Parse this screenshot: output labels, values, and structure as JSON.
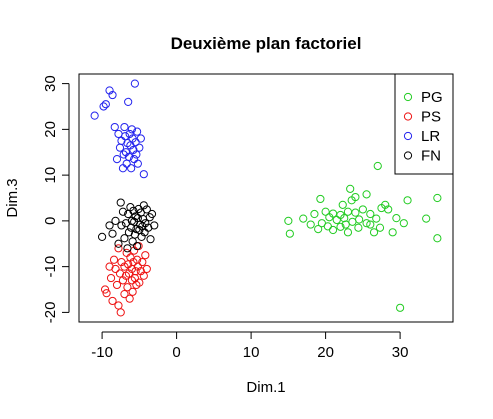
{
  "chart_data": {
    "type": "scatter",
    "title": "Deuxième plan factoriel",
    "xlabel": "Dim.1",
    "ylabel": "Dim.3",
    "xlim": [
      -13.1,
      37.1
    ],
    "ylim": [
      -22.1,
      32.1
    ],
    "x_ticks": [
      -10,
      0,
      10,
      20,
      30
    ],
    "y_ticks": [
      -20,
      -10,
      0,
      10,
      20,
      30
    ],
    "grid": false,
    "legend_position": "top-right",
    "series": [
      {
        "name": "PG",
        "color": "#22cc22",
        "points": [
          [
            15,
            0
          ],
          [
            15.2,
            -2.8
          ],
          [
            17,
            0.5
          ],
          [
            18,
            -0.8
          ],
          [
            18.5,
            1.5
          ],
          [
            19,
            -1.8
          ],
          [
            19.3,
            4.8
          ],
          [
            19.5,
            -0.5
          ],
          [
            20,
            2
          ],
          [
            20.3,
            -1.2
          ],
          [
            20.5,
            0.8
          ],
          [
            21,
            1.6
          ],
          [
            21,
            -2
          ],
          [
            21.5,
            0.2
          ],
          [
            22,
            1.3
          ],
          [
            22,
            -1.3
          ],
          [
            22.3,
            3.5
          ],
          [
            22.5,
            0.6
          ],
          [
            22.7,
            -0.8
          ],
          [
            23,
            2
          ],
          [
            23,
            -2.5
          ],
          [
            23.3,
            7
          ],
          [
            23.5,
            4.5
          ],
          [
            23.6,
            -0.2
          ],
          [
            24,
            1.8
          ],
          [
            24,
            5.2
          ],
          [
            24.4,
            -1.5
          ],
          [
            24.5,
            0.3
          ],
          [
            25,
            2.5
          ],
          [
            25.5,
            -0.5
          ],
          [
            25.5,
            5.8
          ],
          [
            26,
            1.5
          ],
          [
            26,
            -0.8
          ],
          [
            26.5,
            -2.5
          ],
          [
            26.8,
            0.5
          ],
          [
            27,
            12
          ],
          [
            27.3,
            -1.5
          ],
          [
            27.5,
            2.8
          ],
          [
            28,
            3.5
          ],
          [
            28.4,
            2.5
          ],
          [
            29,
            -2.5
          ],
          [
            29.5,
            0.6
          ],
          [
            30,
            -19
          ],
          [
            30.5,
            -0.5
          ],
          [
            31,
            4.5
          ],
          [
            33.5,
            0.5
          ],
          [
            35,
            -3.8
          ],
          [
            35,
            5
          ]
        ]
      },
      {
        "name": "PS",
        "color": "#ee1111",
        "points": [
          [
            -9.6,
            -15
          ],
          [
            -9.4,
            -15.8
          ],
          [
            -9,
            -10
          ],
          [
            -8.8,
            -12.5
          ],
          [
            -8.6,
            -17.5
          ],
          [
            -8.4,
            -8.5
          ],
          [
            -8.2,
            -10.5
          ],
          [
            -8,
            -14
          ],
          [
            -7.8,
            -6
          ],
          [
            -7.8,
            -18.5
          ],
          [
            -7.6,
            -11.5
          ],
          [
            -7.5,
            -20
          ],
          [
            -7.4,
            -9
          ],
          [
            -7.2,
            -13
          ],
          [
            -7,
            -16
          ],
          [
            -7,
            -10
          ],
          [
            -6.8,
            -12
          ],
          [
            -6.7,
            -7
          ],
          [
            -6.6,
            -14.5
          ],
          [
            -6.5,
            -9.5
          ],
          [
            -6.4,
            -11.5
          ],
          [
            -6.3,
            -17
          ],
          [
            -6.2,
            -8
          ],
          [
            -6,
            -13
          ],
          [
            -6,
            -10.5
          ],
          [
            -5.9,
            -15.5
          ],
          [
            -5.8,
            -9
          ],
          [
            -5.7,
            -6.5
          ],
          [
            -5.6,
            -12.5
          ],
          [
            -5.5,
            -11
          ],
          [
            -5.4,
            -14
          ],
          [
            -5.3,
            -8.5
          ],
          [
            -5.2,
            -10
          ],
          [
            -5.1,
            -5.5
          ],
          [
            -5,
            -13.5
          ],
          [
            -4.8,
            -11
          ],
          [
            -4.6,
            -9
          ],
          [
            -4.4,
            -12
          ],
          [
            -4.2,
            -7.5
          ],
          [
            -4,
            -10.5
          ]
        ]
      },
      {
        "name": "LR",
        "color": "#2222ee",
        "points": [
          [
            -11,
            23
          ],
          [
            -9.8,
            25
          ],
          [
            -9.5,
            25.5
          ],
          [
            -9,
            28.5
          ],
          [
            -8.6,
            27.5
          ],
          [
            -8.3,
            20.5
          ],
          [
            -8,
            13.5
          ],
          [
            -7.8,
            19
          ],
          [
            -7.6,
            16
          ],
          [
            -7.4,
            17.5
          ],
          [
            -7.2,
            11.5
          ],
          [
            -7.1,
            14.5
          ],
          [
            -7,
            20.5
          ],
          [
            -6.9,
            18.5
          ],
          [
            -6.8,
            15
          ],
          [
            -6.7,
            12.5
          ],
          [
            -6.6,
            17
          ],
          [
            -6.5,
            26
          ],
          [
            -6.4,
            14
          ],
          [
            -6.3,
            19
          ],
          [
            -6.2,
            16.5
          ],
          [
            -6.1,
            11.5
          ],
          [
            -6,
            20
          ],
          [
            -5.9,
            18
          ],
          [
            -5.8,
            15.5
          ],
          [
            -5.7,
            13.5
          ],
          [
            -5.6,
            30
          ],
          [
            -5.5,
            17.2
          ],
          [
            -5.4,
            14.5
          ],
          [
            -5.3,
            19.5
          ],
          [
            -5.2,
            12.5
          ],
          [
            -5,
            16
          ],
          [
            -4.8,
            18
          ],
          [
            -4.4,
            10.2
          ]
        ]
      },
      {
        "name": "FN",
        "color": "#000000",
        "points": [
          [
            -10,
            -3.5
          ],
          [
            -9,
            -1
          ],
          [
            -8.6,
            -2.8
          ],
          [
            -8.2,
            0
          ],
          [
            -7.8,
            -5
          ],
          [
            -7.5,
            4
          ],
          [
            -7.4,
            -1
          ],
          [
            -7.2,
            2
          ],
          [
            -7,
            -3.8
          ],
          [
            -6.8,
            -0.5
          ],
          [
            -6.6,
            -6
          ],
          [
            -6.5,
            1.5
          ],
          [
            -6.4,
            -2.5
          ],
          [
            -6.2,
            3
          ],
          [
            -6.1,
            -1.5
          ],
          [
            -6,
            0
          ],
          [
            -5.9,
            -4.5
          ],
          [
            -5.8,
            2.2
          ],
          [
            -5.7,
            -0.2
          ],
          [
            -5.6,
            -3
          ],
          [
            -5.5,
            1
          ],
          [
            -5.4,
            -1.8
          ],
          [
            -5.3,
            -5.5
          ],
          [
            -5.2,
            0.6
          ],
          [
            -5.1,
            2.6
          ],
          [
            -5,
            -2
          ],
          [
            -4.9,
            -0.8
          ],
          [
            -4.8,
            1.8
          ],
          [
            -4.7,
            -3.5
          ],
          [
            -4.6,
            -1.2
          ],
          [
            -4.5,
            0.4
          ],
          [
            -4.4,
            3.4
          ],
          [
            -4.3,
            -2.5
          ],
          [
            -4.2,
            -0.5
          ],
          [
            -4,
            2.5
          ],
          [
            -3.8,
            -1.5
          ],
          [
            -3.6,
            0.8
          ],
          [
            -3.5,
            -4
          ],
          [
            -3.3,
            1.5
          ],
          [
            -3,
            -1
          ]
        ]
      }
    ]
  }
}
